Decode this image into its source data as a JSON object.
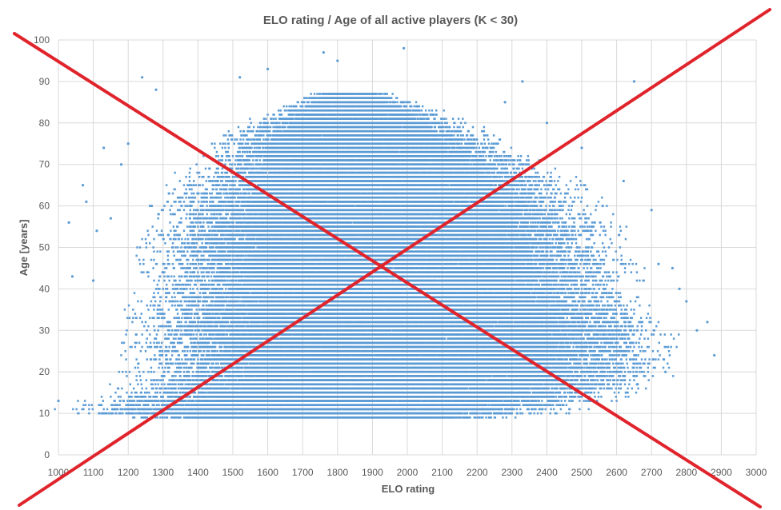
{
  "chart_data": {
    "type": "scatter",
    "title": "ELO rating / Age of all active players (K < 30)",
    "xlabel": "ELO rating",
    "ylabel": "Age [years]",
    "xlim": [
      1000,
      3000
    ],
    "ylim": [
      0,
      100
    ],
    "x_ticks": [
      "1000",
      "1100",
      "1200",
      "1300",
      "1400",
      "1500",
      "1600",
      "1700",
      "1800",
      "1900",
      "2000",
      "2100",
      "2200",
      "2300",
      "2400",
      "2500",
      "2600",
      "2700",
      "2800",
      "2900",
      "3000"
    ],
    "y_ticks": [
      "0",
      "10",
      "20",
      "30",
      "40",
      "50",
      "60",
      "70",
      "80",
      "90",
      "100"
    ],
    "grid": true,
    "legend": "none",
    "marker_color": "#5b9bd5",
    "overlay_cross_color": "#e0242c",
    "series": [
      {
        "density_envelope": [
          {
            "age": 9,
            "elo_min": 1200,
            "elo_max": 2300
          },
          {
            "age": 10,
            "elo_min": 1060,
            "elo_max": 2400
          },
          {
            "age": 11,
            "elo_min": 1060,
            "elo_max": 2450
          },
          {
            "age": 12,
            "elo_min": 1080,
            "elo_max": 2500
          },
          {
            "age": 13,
            "elo_min": 1120,
            "elo_max": 2550
          },
          {
            "age": 15,
            "elo_min": 1200,
            "elo_max": 2600
          },
          {
            "age": 17,
            "elo_min": 1220,
            "elo_max": 2650
          },
          {
            "age": 20,
            "elo_min": 1250,
            "elo_max": 2700
          },
          {
            "age": 25,
            "elo_min": 1250,
            "elo_max": 2700
          },
          {
            "age": 30,
            "elo_min": 1250,
            "elo_max": 2700
          },
          {
            "age": 35,
            "elo_min": 1270,
            "elo_max": 2650
          },
          {
            "age": 40,
            "elo_min": 1280,
            "elo_max": 2600
          },
          {
            "age": 45,
            "elo_min": 1300,
            "elo_max": 2600
          },
          {
            "age": 50,
            "elo_min": 1300,
            "elo_max": 2550
          },
          {
            "age": 55,
            "elo_min": 1320,
            "elo_max": 2550
          },
          {
            "age": 60,
            "elo_min": 1330,
            "elo_max": 2500
          },
          {
            "age": 65,
            "elo_min": 1380,
            "elo_max": 2450
          },
          {
            "age": 70,
            "elo_min": 1430,
            "elo_max": 2350
          },
          {
            "age": 75,
            "elo_min": 1470,
            "elo_max": 2250
          },
          {
            "age": 80,
            "elo_min": 1550,
            "elo_max": 2150
          },
          {
            "age": 84,
            "elo_min": 1650,
            "elo_max": 2050
          },
          {
            "age": 87,
            "elo_min": 1720,
            "elo_max": 1950
          }
        ],
        "outliers": [
          [
            1000,
            13
          ],
          [
            1030,
            56
          ],
          [
            1040,
            43
          ],
          [
            1070,
            65
          ],
          [
            1080,
            61
          ],
          [
            1100,
            42
          ],
          [
            1110,
            54
          ],
          [
            1130,
            74
          ],
          [
            1150,
            57
          ],
          [
            1180,
            70
          ],
          [
            1200,
            75
          ],
          [
            1220,
            83
          ],
          [
            1240,
            91
          ],
          [
            1280,
            88
          ],
          [
            1520,
            91
          ],
          [
            1600,
            93
          ],
          [
            1760,
            97
          ],
          [
            1800,
            95
          ],
          [
            1990,
            98
          ],
          [
            2330,
            90
          ],
          [
            2650,
            90
          ],
          [
            2280,
            85
          ],
          [
            2400,
            80
          ],
          [
            2500,
            74
          ],
          [
            2560,
            60
          ],
          [
            2620,
            66
          ],
          [
            2700,
            59
          ],
          [
            2720,
            46
          ],
          [
            2760,
            45
          ],
          [
            2780,
            40
          ],
          [
            2800,
            37
          ],
          [
            2830,
            30
          ],
          [
            2860,
            32
          ],
          [
            2880,
            24
          ],
          [
            2740,
            20
          ],
          [
            2660,
            17
          ],
          [
            2600,
            20
          ]
        ]
      }
    ]
  }
}
